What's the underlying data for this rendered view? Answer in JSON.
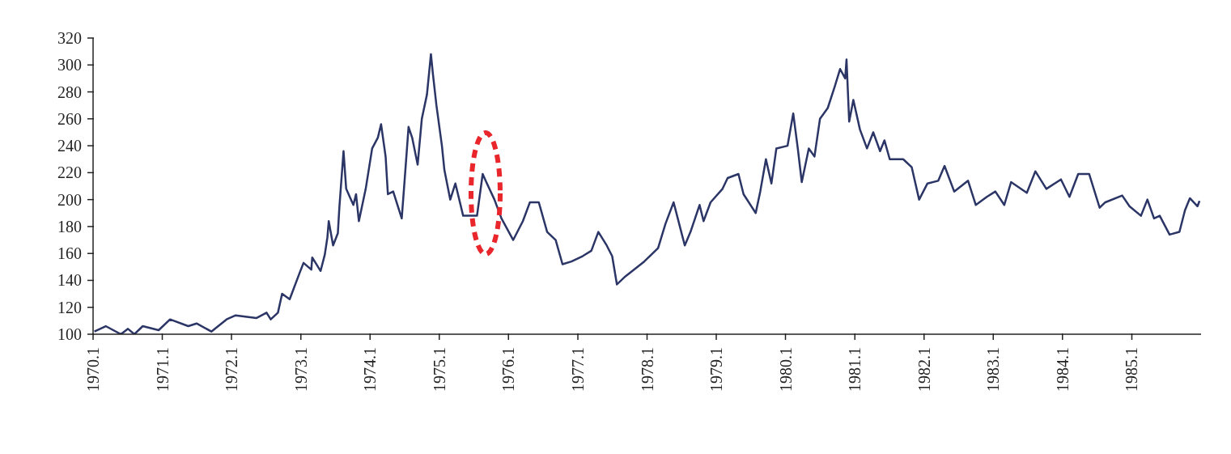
{
  "chart_data": {
    "type": "line",
    "x": [
      "1970-01-08",
      "1970-03-09",
      "1970-05-28",
      "1970-07-04",
      "1970-08-07",
      "1970-09-20",
      "1970-12-13",
      "1971-02-11",
      "1971-05-18",
      "1971-07-01",
      "1971-09-17",
      "1971-12-06",
      "1972-01-23",
      "1972-05-11",
      "1972-07-04",
      "1972-07-26",
      "1972-09-02",
      "1972-09-24",
      "1972-11-03",
      "1972-12-24",
      "1973-01-15",
      "1973-02-25",
      "1973-03-02",
      "1973-04-15",
      "1973-05-07",
      "1973-05-21",
      "1973-05-28",
      "1973-06-20",
      "1973-07-15",
      "1973-07-23",
      "1973-08-14",
      "1973-08-28",
      "1973-10-05",
      "1973-10-19",
      "1973-11-03",
      "1973-12-09",
      "1974-01-12",
      "1974-02-11",
      "1974-02-28",
      "1974-03-24",
      "1974-04-05",
      "1974-05-03",
      "1974-06-17",
      "1974-07-01",
      "1974-07-23",
      "1974-08-11",
      "1974-09-09",
      "1974-10-01",
      "1974-10-28",
      "1974-11-18",
      "1974-11-28",
      "1974-12-17",
      "1975-01-15",
      "1975-01-28",
      "1975-02-28",
      "1975-03-27",
      "1975-05-07",
      "1975-07-19",
      "1975-08-18",
      "1975-09-06",
      "1975-10-19",
      "1975-11-25",
      "1976-01-26",
      "1976-03-17",
      "1976-04-23",
      "1976-06-09",
      "1976-07-23",
      "1976-09-06",
      "1976-10-12",
      "1976-11-28",
      "1977-01-26",
      "1977-03-13",
      "1977-04-19",
      "1977-06-02",
      "1977-07-01",
      "1977-07-26",
      "1977-09-09",
      "1977-12-17",
      "1978-02-28",
      "1978-04-08",
      "1978-05-21",
      "1978-07-04",
      "1978-07-19",
      "1978-08-18",
      "1978-10-05",
      "1978-10-26",
      "1978-12-02",
      "1979-02-03",
      "1979-03-02",
      "1979-04-28",
      "1979-05-25",
      "1979-07-28",
      "1979-08-21",
      "1979-09-20",
      "1979-10-19",
      "1979-11-14",
      "1980-01-12",
      "1980-02-11",
      "1980-03-06",
      "1980-03-27",
      "1980-05-03",
      "1980-06-02",
      "1980-07-01",
      "1980-08-11",
      "1980-09-17",
      "1980-10-15",
      "1980-11-11",
      "1980-11-18",
      "1980-12-02",
      "1980-12-24",
      "1981-01-28",
      "1981-03-06",
      "1981-04-08",
      "1981-05-14",
      "1981-06-06",
      "1981-07-04",
      "1981-09-13",
      "1981-10-28",
      "1981-12-06",
      "1982-01-19",
      "1982-03-17",
      "1982-04-19",
      "1982-06-09",
      "1982-08-21",
      "1982-10-01",
      "1982-11-28",
      "1983-01-12",
      "1983-02-28",
      "1983-04-05",
      "1983-06-27",
      "1983-08-11",
      "1983-10-08",
      "1983-12-24",
      "1984-02-07",
      "1984-03-24",
      "1984-05-21",
      "1984-07-15",
      "1984-08-14",
      "1984-11-11",
      "1984-12-20",
      "1985-02-18",
      "1985-03-24",
      "1985-04-28",
      "1985-05-28",
      "1985-07-19",
      "1985-09-09",
      "1985-10-08",
      "1985-11-03",
      "1985-12-13",
      "1985-12-24"
    ],
    "series": [
      {
        "color": "#2b3566",
        "values": [
          102,
          106,
          100,
          104,
          100,
          106,
          103,
          111,
          106,
          108,
          102,
          111,
          114,
          112,
          116,
          111,
          116,
          130,
          126,
          145,
          153,
          148,
          157,
          147,
          159,
          172,
          184,
          166,
          175,
          194,
          236,
          208,
          196,
          204,
          184,
          208,
          238,
          246,
          256,
          232,
          204,
          206,
          186,
          212,
          254,
          246,
          226,
          260,
          278,
          308,
          294,
          270,
          240,
          222,
          200,
          212,
          188,
          188,
          219,
          213,
          200,
          186,
          170,
          184,
          198,
          198,
          176,
          170,
          152,
          154,
          158,
          162,
          176,
          166,
          158,
          137,
          143,
          154,
          164,
          182,
          198,
          174,
          166,
          176,
          196,
          184,
          198,
          208,
          216,
          219,
          204,
          190,
          206,
          230,
          212,
          238,
          240,
          264,
          238,
          213,
          238,
          232,
          260,
          268,
          284,
          297,
          290,
          304,
          258,
          274,
          252,
          238,
          250,
          236,
          244,
          230,
          230,
          224,
          200,
          212,
          214,
          225,
          206,
          214,
          196,
          202,
          206,
          196,
          213,
          205,
          221,
          208,
          215,
          202,
          219,
          219,
          194,
          198,
          203,
          195,
          188,
          200,
          186,
          188,
          174,
          176,
          192,
          201,
          195,
          199
        ]
      }
    ],
    "xlim": [
      "1970-01-01",
      "1986-01-01"
    ],
    "xticks": [
      {
        "value": "1970-01",
        "label": "1970.1"
      },
      {
        "value": "1971-01",
        "label": "1971.1"
      },
      {
        "value": "1972-01",
        "label": "1972.1"
      },
      {
        "value": "1973-01",
        "label": "1973.1"
      },
      {
        "value": "1974-01",
        "label": "1974.1"
      },
      {
        "value": "1975-01",
        "label": "1975.1"
      },
      {
        "value": "1976-01",
        "label": "1976.1"
      },
      {
        "value": "1977-01",
        "label": "1977.1"
      },
      {
        "value": "1978-01",
        "label": "1978.1"
      },
      {
        "value": "1979-01",
        "label": "1979.1"
      },
      {
        "value": "1980-01",
        "label": "1980.1"
      },
      {
        "value": "1981-01",
        "label": "1981.1"
      },
      {
        "value": "1982-01",
        "label": "1982.1"
      },
      {
        "value": "1983-01",
        "label": "1983.1"
      },
      {
        "value": "1984-01",
        "label": "1984.1"
      },
      {
        "value": "1985-01",
        "label": "1985.1"
      }
    ],
    "ylim": [
      100,
      320
    ],
    "yticks": [
      100,
      120,
      140,
      160,
      180,
      200,
      220,
      240,
      260,
      280,
      300,
      320
    ]
  }
}
